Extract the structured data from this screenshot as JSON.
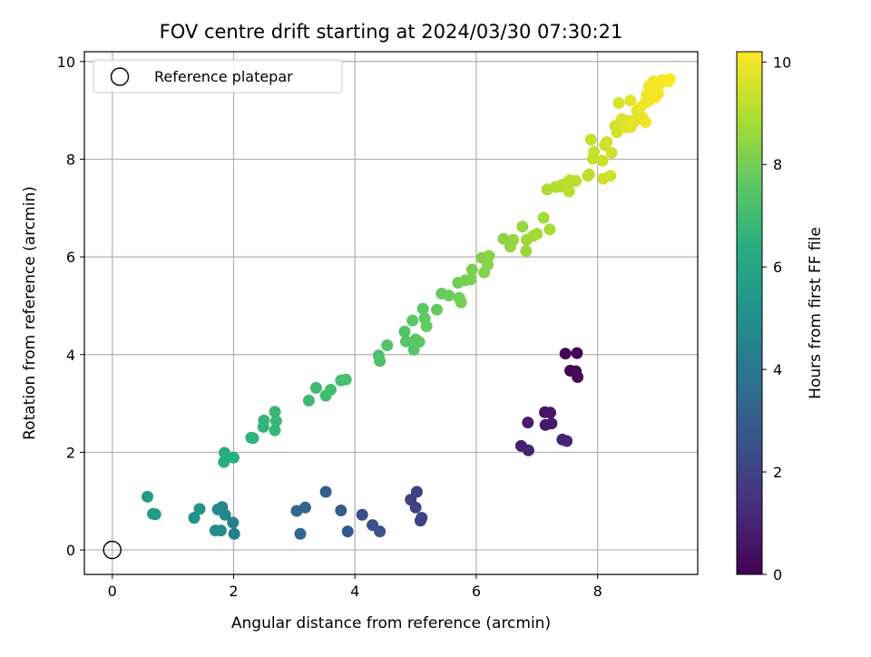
{
  "chart_data": {
    "type": "scatter",
    "title": "FOV centre drift starting at 2024/03/30 07:30:21",
    "xlabel": "Angular distance from reference (arcmin)",
    "ylabel": "Rotation from reference (arcmin)",
    "xlim": [
      -0.46,
      9.65
    ],
    "ylim": [
      -0.5,
      10.2
    ],
    "xticks": [
      0,
      2,
      4,
      6,
      8
    ],
    "yticks": [
      0,
      2,
      4,
      6,
      8,
      10
    ],
    "grid": true,
    "legend": {
      "position": "top-left",
      "entries": [
        "Reference platepar"
      ]
    },
    "reference_point": {
      "x": 0,
      "y": 0
    },
    "colorbar": {
      "label": "Hours from first FF file",
      "range": [
        0,
        10.2
      ],
      "ticks": [
        0,
        2,
        4,
        6,
        8,
        10
      ],
      "colormap": "viridis"
    },
    "points": [
      [
        7.47,
        4.02,
        0.05
      ],
      [
        7.66,
        4.03,
        0.1
      ],
      [
        7.55,
        3.67,
        0.15
      ],
      [
        7.64,
        3.66,
        0.2
      ],
      [
        7.67,
        3.54,
        0.25
      ],
      [
        7.13,
        2.82,
        0.6
      ],
      [
        7.22,
        2.81,
        0.65
      ],
      [
        7.14,
        2.56,
        0.7
      ],
      [
        7.24,
        2.59,
        0.75
      ],
      [
        6.85,
        2.61,
        0.8
      ],
      [
        6.74,
        2.13,
        0.9
      ],
      [
        6.86,
        2.04,
        0.95
      ],
      [
        7.42,
        2.26,
        1.0
      ],
      [
        7.49,
        2.23,
        1.05
      ],
      [
        5.02,
        1.19,
        1.9
      ],
      [
        4.92,
        1.03,
        1.95
      ],
      [
        5.0,
        0.87,
        2.0
      ],
      [
        5.08,
        0.6,
        2.05
      ],
      [
        5.1,
        0.66,
        2.1
      ],
      [
        4.12,
        0.72,
        2.4
      ],
      [
        4.29,
        0.51,
        2.5
      ],
      [
        4.41,
        0.38,
        2.55
      ],
      [
        3.88,
        0.38,
        2.8
      ],
      [
        3.77,
        0.81,
        2.9
      ],
      [
        3.52,
        1.19,
        3.1
      ],
      [
        3.18,
        0.87,
        3.3
      ],
      [
        3.04,
        0.8,
        3.35
      ],
      [
        3.1,
        0.33,
        3.4
      ],
      [
        1.99,
        0.56,
        4.3
      ],
      [
        2.01,
        0.33,
        4.35
      ],
      [
        1.81,
        0.88,
        4.6
      ],
      [
        1.86,
        0.72,
        4.7
      ],
      [
        1.74,
        0.83,
        4.8
      ],
      [
        1.7,
        0.4,
        4.9
      ],
      [
        1.79,
        0.4,
        4.95
      ],
      [
        1.35,
        0.66,
        5.0
      ],
      [
        1.44,
        0.84,
        5.2
      ],
      [
        0.67,
        0.74,
        5.4
      ],
      [
        0.71,
        0.73,
        5.45
      ],
      [
        0.58,
        1.09,
        5.5
      ],
      [
        1.85,
        1.99,
        6.3
      ],
      [
        1.84,
        1.8,
        6.35
      ],
      [
        2.0,
        1.89,
        6.4
      ],
      [
        2.29,
        2.3,
        6.5
      ],
      [
        2.32,
        2.29,
        6.55
      ],
      [
        2.49,
        2.52,
        6.6
      ],
      [
        2.5,
        2.65,
        6.65
      ],
      [
        2.68,
        2.45,
        6.7
      ],
      [
        2.7,
        2.64,
        6.75
      ],
      [
        2.68,
        2.83,
        6.8
      ],
      [
        3.24,
        3.06,
        6.9
      ],
      [
        3.36,
        3.32,
        6.95
      ],
      [
        3.52,
        3.16,
        7.0
      ],
      [
        3.6,
        3.28,
        7.05
      ],
      [
        3.77,
        3.47,
        7.1
      ],
      [
        3.85,
        3.49,
        7.15
      ],
      [
        4.39,
        3.98,
        7.2
      ],
      [
        4.41,
        3.87,
        7.25
      ],
      [
        4.53,
        4.19,
        7.3
      ],
      [
        4.82,
        4.47,
        7.35
      ],
      [
        4.84,
        4.27,
        7.4
      ],
      [
        4.97,
        4.1,
        7.45
      ],
      [
        5.0,
        4.31,
        7.5
      ],
      [
        4.95,
        4.7,
        7.55
      ],
      [
        5.06,
        4.26,
        7.6
      ],
      [
        5.12,
        4.94,
        7.6
      ],
      [
        5.15,
        4.74,
        7.65
      ],
      [
        5.18,
        4.58,
        7.7
      ],
      [
        5.35,
        4.92,
        7.75
      ],
      [
        5.43,
        5.25,
        7.8
      ],
      [
        5.55,
        5.21,
        7.85
      ],
      [
        5.7,
        5.47,
        7.9
      ],
      [
        5.72,
        5.16,
        7.95
      ],
      [
        5.75,
        5.07,
        8.0
      ],
      [
        5.82,
        5.52,
        8.05
      ],
      [
        5.91,
        5.54,
        8.1
      ],
      [
        5.93,
        5.74,
        8.15
      ],
      [
        6.09,
        5.98,
        8.2
      ],
      [
        6.13,
        5.68,
        8.25
      ],
      [
        6.19,
        5.84,
        8.3
      ],
      [
        6.21,
        6.02,
        8.35
      ],
      [
        6.45,
        6.37,
        8.4
      ],
      [
        6.56,
        6.21,
        8.45
      ],
      [
        6.61,
        6.35,
        8.5
      ],
      [
        6.76,
        6.62,
        8.55
      ],
      [
        6.82,
        6.12,
        8.6
      ],
      [
        6.83,
        6.35,
        8.65
      ],
      [
        6.94,
        6.43,
        8.7
      ],
      [
        7.0,
        6.47,
        8.75
      ],
      [
        7.11,
        6.8,
        8.8
      ],
      [
        7.21,
        6.56,
        8.85
      ],
      [
        7.17,
        7.38,
        8.9
      ],
      [
        7.31,
        7.43,
        8.95
      ],
      [
        7.39,
        7.44,
        9.0
      ],
      [
        7.41,
        7.47,
        9.05
      ],
      [
        7.48,
        7.5,
        9.05
      ],
      [
        7.53,
        7.34,
        9.1
      ],
      [
        7.54,
        7.57,
        9.1
      ],
      [
        7.63,
        7.55,
        9.15
      ],
      [
        7.64,
        7.56,
        9.15
      ],
      [
        7.84,
        7.66,
        9.2
      ],
      [
        7.86,
        7.69,
        9.2
      ],
      [
        7.89,
        8.4,
        9.25
      ],
      [
        7.94,
        8.15,
        9.3
      ],
      [
        7.92,
        8.01,
        9.3
      ],
      [
        8.08,
        7.97,
        9.35
      ],
      [
        8.09,
        7.6,
        9.4
      ],
      [
        8.12,
        8.29,
        9.4
      ],
      [
        8.15,
        8.35,
        9.45
      ],
      [
        8.21,
        7.66,
        9.45
      ],
      [
        8.23,
        8.13,
        9.5
      ],
      [
        8.29,
        8.68,
        9.55
      ],
      [
        8.32,
        8.55,
        9.55
      ],
      [
        8.35,
        9.15,
        9.6
      ],
      [
        8.37,
        8.73,
        9.6
      ],
      [
        8.4,
        8.82,
        9.65
      ],
      [
        8.46,
        8.65,
        9.7
      ],
      [
        8.51,
        8.78,
        9.7
      ],
      [
        8.54,
        9.2,
        9.75
      ],
      [
        8.55,
        8.66,
        9.75
      ],
      [
        8.58,
        8.74,
        9.8
      ],
      [
        8.62,
        8.79,
        9.8
      ],
      [
        8.65,
        8.99,
        9.85
      ],
      [
        8.68,
        8.88,
        9.85
      ],
      [
        8.7,
        9.06,
        9.9
      ],
      [
        8.74,
        8.85,
        9.9
      ],
      [
        8.78,
        9.15,
        9.95
      ],
      [
        8.79,
        8.76,
        9.95
      ],
      [
        8.81,
        9.32,
        10.0
      ],
      [
        8.85,
        9.5,
        10.0
      ],
      [
        8.86,
        9.21,
        10.0
      ],
      [
        8.9,
        9.39,
        10.05
      ],
      [
        8.92,
        9.59,
        10.05
      ],
      [
        8.95,
        9.27,
        10.05
      ],
      [
        9.0,
        9.35,
        10.1
      ],
      [
        9.03,
        9.55,
        10.1
      ],
      [
        9.06,
        9.62,
        10.1
      ],
      [
        9.12,
        9.61,
        10.15
      ],
      [
        9.16,
        9.59,
        10.15
      ],
      [
        9.19,
        9.64,
        10.2
      ]
    ]
  }
}
